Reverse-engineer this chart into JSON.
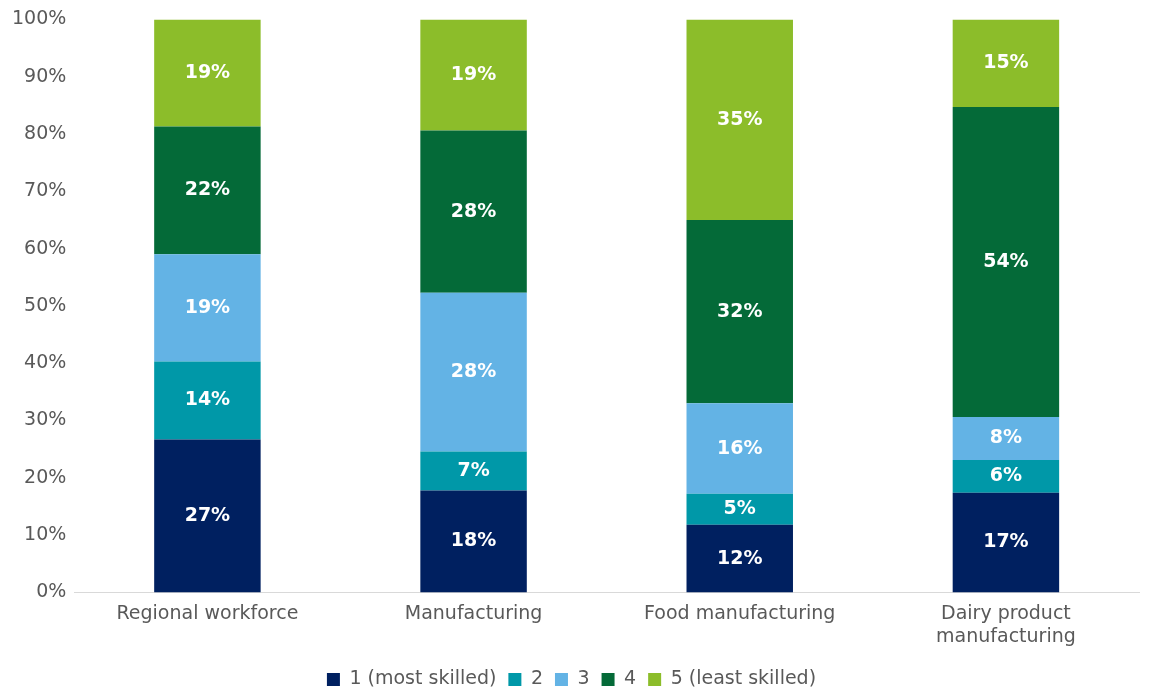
{
  "chart_data": {
    "type": "bar",
    "stacked": true,
    "categories": [
      "Regional workforce",
      "Manufacturing",
      "Food manufacturing",
      "Dairy product manufacturing"
    ],
    "series": [
      {
        "name": "1 (most skilled)",
        "color": "#002060",
        "values": [
          26.7,
          17.8,
          11.8,
          17.4
        ],
        "value_labels": [
          "27%",
          "18%",
          "12%",
          "17%"
        ]
      },
      {
        "name": "2",
        "color": "#0098a8",
        "values": [
          13.6,
          6.8,
          5.4,
          5.7
        ],
        "value_labels": [
          "14%",
          "7%",
          "5%",
          "6%"
        ]
      },
      {
        "name": "3",
        "color": "#63b3e5",
        "values": [
          18.7,
          27.7,
          15.8,
          7.5
        ],
        "value_labels": [
          "19%",
          "28%",
          "16%",
          "8%"
        ]
      },
      {
        "name": "4",
        "color": "#046a38",
        "values": [
          22.3,
          28.3,
          32,
          54.1
        ],
        "value_labels": [
          "22%",
          "28%",
          "32%",
          "54%"
        ]
      },
      {
        "name": "5 (least skilled)",
        "color": "#8cbd2a",
        "values": [
          18.7,
          19.4,
          35,
          15.3
        ],
        "value_labels": [
          "19%",
          "19%",
          "35%",
          "15%"
        ]
      }
    ],
    "ylim": [
      0,
      100
    ],
    "yticks": [
      {
        "value": 0,
        "label": "0%"
      },
      {
        "value": 10,
        "label": "10%"
      },
      {
        "value": 20,
        "label": "20%"
      },
      {
        "value": 30,
        "label": "30%"
      },
      {
        "value": 40,
        "label": "40%"
      },
      {
        "value": 50,
        "label": "50%"
      },
      {
        "value": 60,
        "label": "60%"
      },
      {
        "value": 70,
        "label": "70%"
      },
      {
        "value": 80,
        "label": "80%"
      },
      {
        "value": 90,
        "label": "90%"
      },
      {
        "value": 100,
        "label": "100%"
      }
    ],
    "grid": false,
    "legend": "bottom"
  }
}
